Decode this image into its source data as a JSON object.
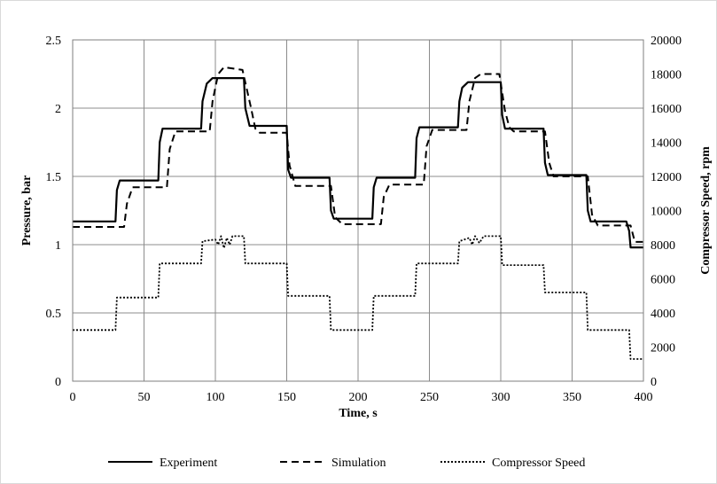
{
  "chart_data": {
    "type": "line",
    "title": "",
    "xlabel": "Time, s",
    "ylabel_left": "Pressure, bar",
    "ylabel_right": "Compressor Speed, rpm",
    "xlim": [
      0,
      400
    ],
    "ylim_left": [
      0,
      2.5
    ],
    "ylim_right": [
      0,
      20000
    ],
    "x_ticks": [
      "0",
      "50",
      "100",
      "150",
      "200",
      "250",
      "300",
      "350",
      "400"
    ],
    "y_left_ticks": [
      "0",
      "0.5",
      "1",
      "1.5",
      "2",
      "2.5"
    ],
    "y_right_ticks": [
      "0",
      "2000",
      "4000",
      "6000",
      "8000",
      "10000",
      "12000",
      "14000",
      "16000",
      "18000",
      "20000"
    ],
    "grid": true,
    "legend_position": "bottom",
    "series": [
      {
        "name": "Experiment",
        "axis": "left",
        "style": "solid",
        "color": "#000000",
        "x": [
          0,
          30,
          31,
          33,
          60,
          61,
          63,
          90,
          91,
          94,
          98,
          120,
          121,
          124,
          150,
          151,
          153,
          180,
          181,
          183,
          210,
          211,
          213,
          240,
          241,
          243,
          270,
          271,
          273,
          277,
          300,
          301,
          303,
          330,
          331,
          333,
          360,
          361,
          363,
          388,
          390,
          391,
          400
        ],
        "y": [
          1.17,
          1.17,
          1.4,
          1.47,
          1.47,
          1.75,
          1.85,
          1.85,
          2.05,
          2.18,
          2.22,
          2.22,
          2.0,
          1.87,
          1.87,
          1.55,
          1.49,
          1.49,
          1.25,
          1.19,
          1.19,
          1.42,
          1.49,
          1.49,
          1.78,
          1.86,
          1.86,
          2.05,
          2.15,
          2.19,
          2.19,
          1.95,
          1.85,
          1.85,
          1.6,
          1.51,
          1.51,
          1.25,
          1.17,
          1.17,
          1.1,
          0.98,
          0.98
        ]
      },
      {
        "name": "Simulation",
        "axis": "left",
        "style": "dashed",
        "color": "#000000",
        "x": [
          0,
          36,
          38,
          42,
          66,
          68,
          72,
          96,
          98,
          102,
          106,
          119,
          125,
          128,
          131,
          150,
          152,
          156,
          181,
          184,
          189,
          216,
          218,
          222,
          246,
          248,
          252,
          276,
          278,
          282,
          286,
          299,
          303,
          306,
          309,
          331,
          334,
          337,
          361,
          364,
          368,
          391,
          394,
          400
        ],
        "y": [
          1.13,
          1.13,
          1.3,
          1.42,
          1.42,
          1.7,
          1.83,
          1.83,
          2.05,
          2.25,
          2.3,
          2.28,
          2.0,
          1.85,
          1.82,
          1.82,
          1.58,
          1.43,
          1.43,
          1.2,
          1.15,
          1.15,
          1.35,
          1.44,
          1.44,
          1.72,
          1.84,
          1.84,
          2.05,
          2.22,
          2.25,
          2.25,
          1.98,
          1.86,
          1.83,
          1.83,
          1.6,
          1.5,
          1.5,
          1.22,
          1.14,
          1.14,
          1.02,
          1.02
        ]
      },
      {
        "name": "Compressor Speed",
        "axis": "right",
        "style": "dotted",
        "color": "#000000",
        "x": [
          0,
          30,
          31,
          60,
          61,
          90,
          91,
          100,
          102,
          104,
          106,
          108,
          110,
          112,
          120,
          121,
          150,
          151,
          180,
          181,
          210,
          211,
          240,
          241,
          270,
          271,
          278,
          280,
          282,
          285,
          288,
          300,
          301,
          330,
          331,
          360,
          361,
          390,
          391,
          400
        ],
        "y": [
          3000,
          3000,
          4900,
          4900,
          6900,
          6900,
          8200,
          8300,
          8000,
          8500,
          7800,
          8400,
          8000,
          8500,
          8500,
          6900,
          6900,
          5000,
          5000,
          3000,
          3000,
          5000,
          5000,
          6900,
          6900,
          8200,
          8400,
          8000,
          8500,
          8100,
          8500,
          8500,
          6800,
          6800,
          5200,
          5200,
          3000,
          3000,
          1300,
          1300
        ]
      }
    ]
  }
}
